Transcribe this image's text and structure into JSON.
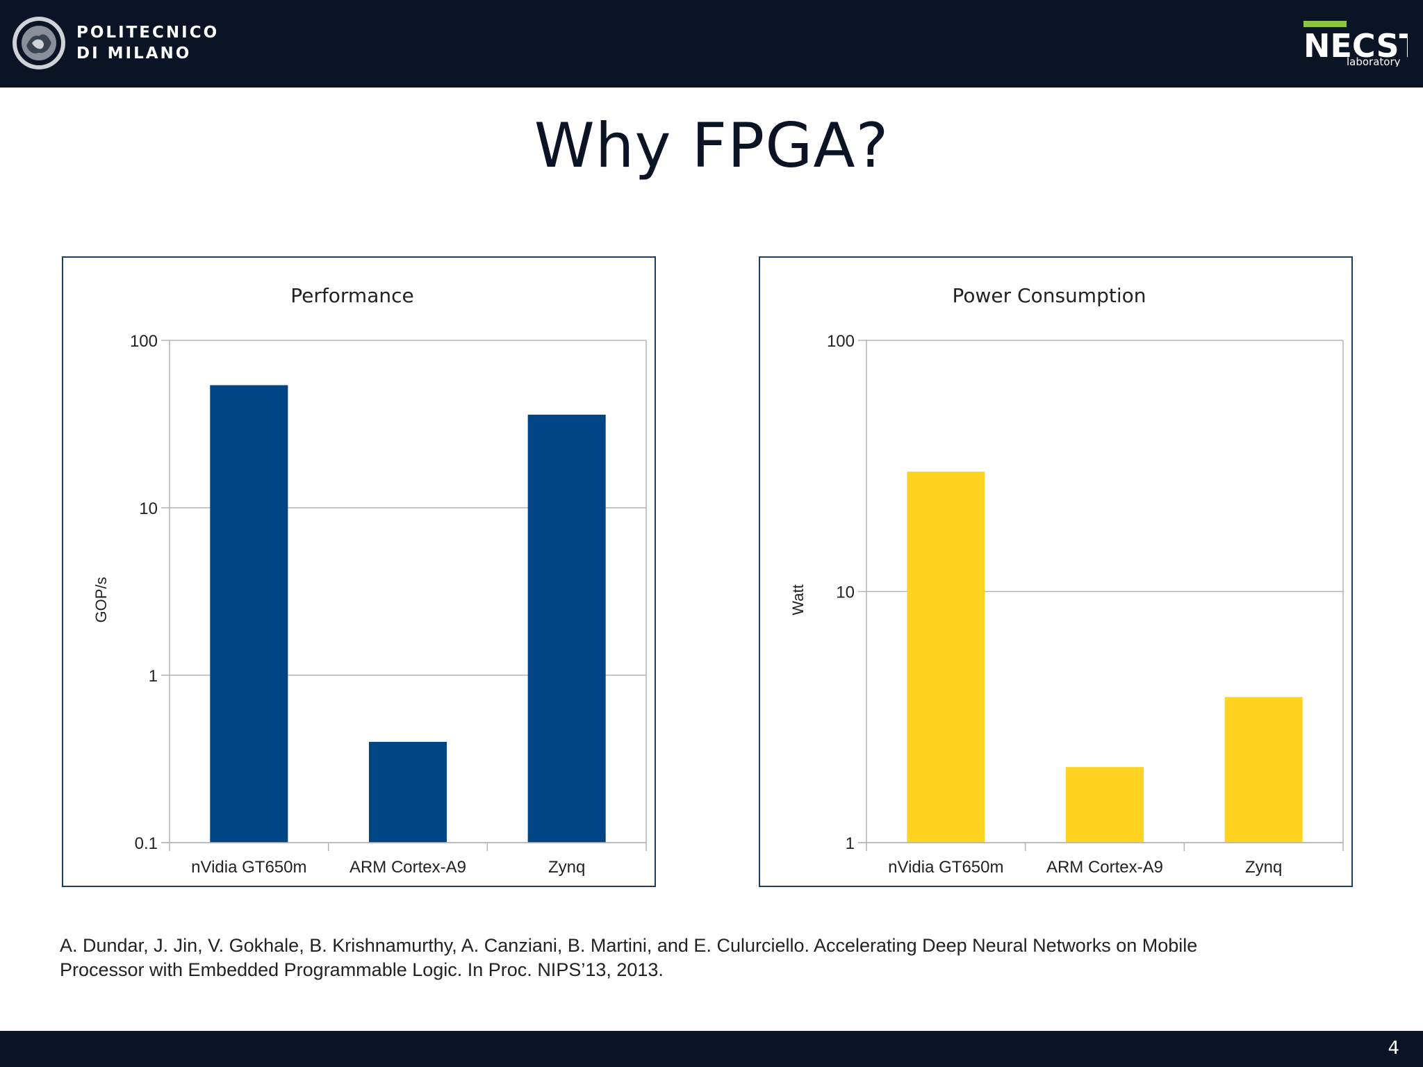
{
  "header": {
    "university_line1": "POLITECNICO",
    "university_line2": "DI MILANO",
    "lab_main": "NECST",
    "lab_sub": "laboratory"
  },
  "slide": {
    "title": "Why FPGA?",
    "citation_line1": "A. Dundar, J. Jin, V. Gokhale, B. Krishnamurthy, A. Canziani, B. Martini, and E. Culurciello. Accelerating Deep Neural Networks on Mobile",
    "citation_line2": "Processor with Embedded Programmable Logic. In Proc. NIPS’13, 2013.",
    "page_number": "4"
  },
  "colors": {
    "bar_performance": "#004586",
    "bar_power": "#ffd320",
    "header_bg": "#0b1424",
    "necst_green": "#8dc63f"
  },
  "chart_data": [
    {
      "type": "bar",
      "title": "Performance",
      "xlabel": "",
      "ylabel": "GOP/s",
      "yscale": "log",
      "ylim": [
        0.1,
        100
      ],
      "yticks": [
        "0.1",
        "1",
        "10",
        "100"
      ],
      "grid": true,
      "categories": [
        "nVidia GT650m",
        "ARM Cortex-A9",
        "Zynq"
      ],
      "values": [
        54,
        0.4,
        36
      ],
      "color": "#004586"
    },
    {
      "type": "bar",
      "title": "Power Consumption",
      "xlabel": "",
      "ylabel": "Watt",
      "yscale": "log",
      "ylim": [
        1,
        100
      ],
      "yticks": [
        "1",
        "10",
        "100"
      ],
      "grid": true,
      "categories": [
        "nVidia GT650m",
        "ARM Cortex-A9",
        "Zynq"
      ],
      "values": [
        30,
        2,
        3.8
      ],
      "color": "#ffd320"
    }
  ]
}
